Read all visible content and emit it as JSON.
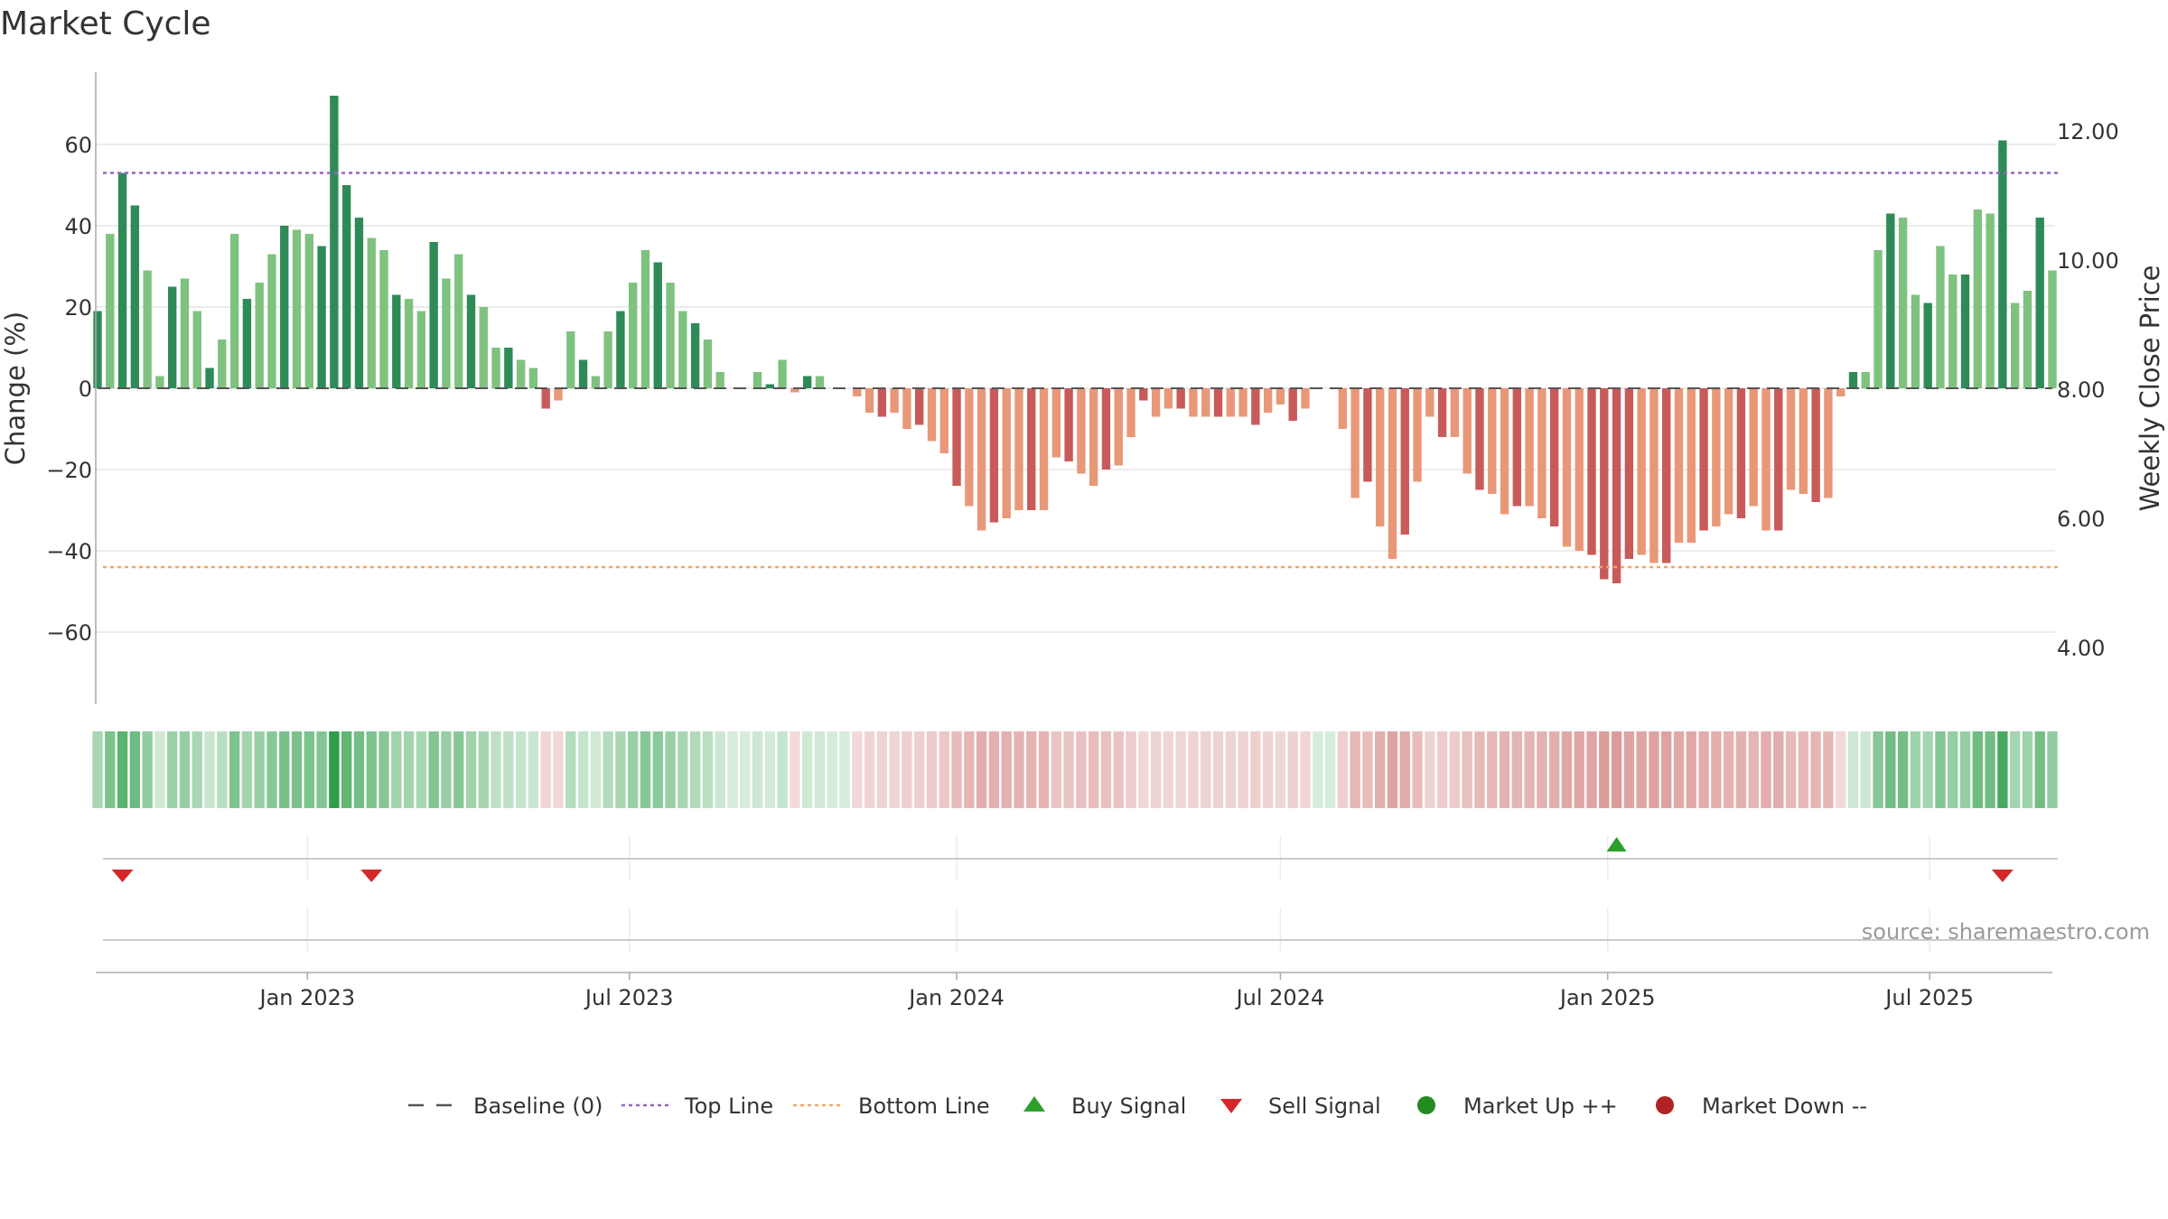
{
  "chart_data": {
    "type": "bar",
    "title": "Market Cycle",
    "ylabel": "Change (%)",
    "y2label": "Weekly Close Price",
    "ylim": [
      -78,
      78
    ],
    "yticks": [
      60,
      40,
      20,
      0,
      -20,
      -40,
      -60
    ],
    "ytick_labels": [
      "60",
      "40",
      "20",
      "0",
      "−20",
      "−40",
      "−60"
    ],
    "y2lim": [
      3.55,
      13.0
    ],
    "y2ticks": [
      12.0,
      10.0,
      8.0,
      6.0,
      4.0
    ],
    "y2tick_labels": [
      "12.00",
      "10.00",
      "8.00",
      "6.00",
      "4.00"
    ],
    "x_start": "2022-09-05",
    "x_end": "2025-09-08",
    "x_interval_days": 7,
    "xticks": [
      {
        "date": "2023-01-01",
        "label": "Jan 2023"
      },
      {
        "date": "2023-07-01",
        "label": "Jul 2023"
      },
      {
        "date": "2024-01-01",
        "label": "Jan 2024"
      },
      {
        "date": "2024-07-01",
        "label": "Jul 2024"
      },
      {
        "date": "2025-01-01",
        "label": "Jan 2025"
      },
      {
        "date": "2025-07-01",
        "label": "Jul 2025"
      }
    ],
    "top_line": 53,
    "bottom_line": -44,
    "values": [
      19,
      38,
      53,
      45,
      29,
      3,
      25,
      27,
      19,
      5,
      12,
      38,
      22,
      26,
      33,
      40,
      39,
      38,
      35,
      72,
      50,
      42,
      37,
      34,
      23,
      22,
      19,
      36,
      27,
      33,
      23,
      20,
      10,
      10,
      7,
      5,
      -5,
      -3,
      14,
      7,
      3,
      14,
      19,
      26,
      34,
      31,
      26,
      19,
      16,
      12,
      4,
      0,
      0,
      4,
      1,
      7,
      -1,
      3,
      3,
      0,
      0,
      -2,
      -6,
      -7,
      -6,
      -10,
      -9,
      -13,
      -16,
      -24,
      -29,
      -35,
      -33,
      -32,
      -30,
      -30,
      -30,
      -17,
      -18,
      -21,
      -24,
      -20,
      -19,
      -12,
      -3,
      -7,
      -5,
      -5,
      -7,
      -7,
      -7,
      -7,
      -7,
      -9,
      -6,
      -4,
      -8,
      -5,
      0,
      0,
      -10,
      -27,
      -23,
      -34,
      -42,
      -36,
      -23,
      -7,
      -12,
      -12,
      -21,
      -25,
      -26,
      -31,
      -29,
      -29,
      -32,
      -34,
      -39,
      -40,
      -41,
      -47,
      -48,
      -42,
      -41,
      -43,
      -43,
      -38,
      -38,
      -35,
      -34,
      -31,
      -32,
      -29,
      -35,
      -35,
      -25,
      -26,
      -28,
      -27,
      -2,
      4,
      4,
      34,
      43,
      42,
      23,
      21,
      35,
      28,
      28,
      44,
      43,
      61,
      21,
      24,
      42,
      29
    ],
    "buy_signals": [
      "2025-01-06"
    ],
    "sell_signals": [
      "2022-09-19",
      "2023-02-06",
      "2025-08-11"
    ],
    "colors": {
      "up_dark": "#2e8b57",
      "up_light": "#7fc27f",
      "down_dark": "#c85a5a",
      "down_light": "#e89878",
      "top_line": "#9467bd",
      "bottom_line": "#f4a460",
      "baseline": "#555555",
      "buy": "#2ca02c",
      "sell": "#d62728",
      "market_up": "#228b22",
      "market_down": "#b22222"
    },
    "legend_position": "bottom",
    "legend": [
      {
        "name": "Baseline (0)",
        "symbol": "dash-line",
        "color": "#555555"
      },
      {
        "name": "Top Line",
        "symbol": "dot-line",
        "color": "#9467bd"
      },
      {
        "name": "Bottom Line",
        "symbol": "dot-line",
        "color": "#f4a460"
      },
      {
        "name": "Buy Signal",
        "symbol": "triangle-up",
        "color": "#2ca02c"
      },
      {
        "name": "Sell Signal",
        "symbol": "triangle-down",
        "color": "#d62728"
      },
      {
        "name": "Market Up ++",
        "symbol": "circle",
        "color": "#228b22"
      },
      {
        "name": "Market Down --",
        "symbol": "circle",
        "color": "#b22222"
      }
    ],
    "source": "source: sharemaestro.com"
  }
}
